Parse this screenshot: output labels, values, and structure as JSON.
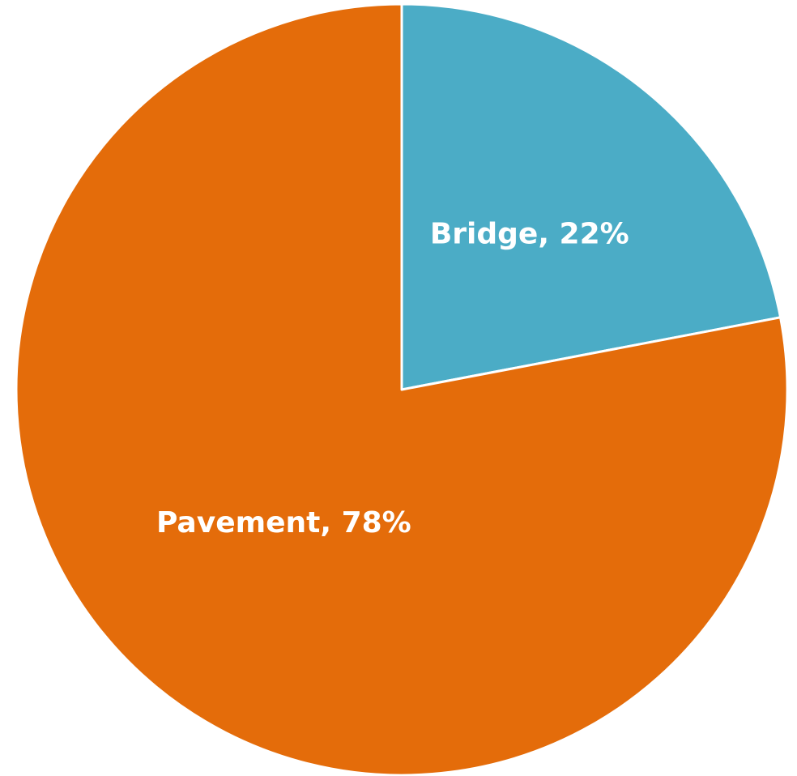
{
  "chart_data": {
    "type": "pie",
    "title": "",
    "slices": [
      {
        "label": "Bridge",
        "value": 22,
        "display": "Bridge, 22%",
        "color": "#4BACC6"
      },
      {
        "label": "Pavement",
        "value": 78,
        "display": "Pavement, 78%",
        "color": "#E46C0A"
      }
    ],
    "start_angle": "12 o'clock",
    "direction": "clockwise",
    "legend": "none",
    "data_labels": "inside"
  }
}
